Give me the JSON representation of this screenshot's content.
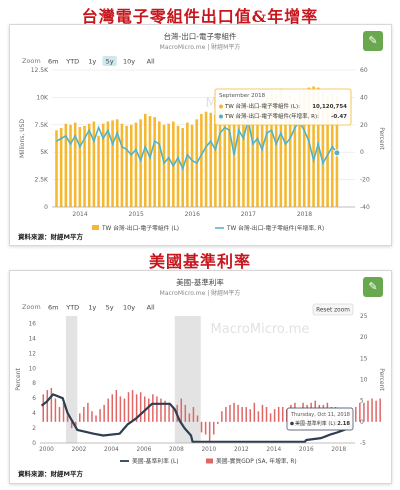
{
  "headline1": "台灣電子零組件出口值&年增率",
  "headline2": "美國基準利率",
  "chart_data": [
    {
      "type": "bar",
      "title": "台灣-出口-電子零組件",
      "subtitle": "MacroMicro.me | 財經M平方",
      "watermark": "MacroMicro.me",
      "source": "資料來源：財經M平方",
      "zoom_label": "Zoom",
      "zoom_buttons": [
        "6m",
        "YTD",
        "1y",
        "5y",
        "10y",
        "All"
      ],
      "active_zoom": "5y",
      "ylabel_left": "Millions, USD",
      "ylabel_right": "Percent",
      "left_ticks": [
        "0",
        "2.5K",
        "5K",
        "7.5K",
        "10K",
        "12.5K"
      ],
      "right_ticks": [
        "-40",
        "-20",
        "0",
        "20",
        "40",
        "60"
      ],
      "x_ticks": [
        "2014",
        "2015",
        "2016",
        "2017",
        "2018"
      ],
      "ylim_left": [
        0,
        12500
      ],
      "ylim_right": [
        -40,
        60
      ],
      "x_range": [
        2013.5,
        2018.9
      ],
      "start": 2013.58,
      "step": 0.0833,
      "series": [
        {
          "name": "TW 台灣-出口-電子零組件 (L)",
          "type": "bar",
          "color": "#f5b82e",
          "values": [
            7000,
            7200,
            7600,
            7500,
            7700,
            7300,
            7400,
            7600,
            7800,
            6500,
            7600,
            7800,
            7900,
            8000,
            7600,
            7400,
            7500,
            7700,
            8000,
            8500,
            8300,
            8200,
            7800,
            7500,
            7600,
            7800,
            7400,
            7200,
            7700,
            7500,
            8000,
            8500,
            8700,
            8600,
            8400,
            8800,
            9300,
            9800,
            8100,
            9000,
            9300,
            9400,
            9600,
            9500,
            9800,
            10200,
            10500,
            10300,
            10800,
            9600,
            10200,
            10000,
            10400,
            10600,
            10900,
            11000,
            10900,
            10500,
            10100,
            10300,
            10120
          ]
        },
        {
          "name": "TW 台灣-出口-電子零組件(年增率, R)",
          "type": "line",
          "color": "#4fb3c8",
          "values": [
            8,
            10,
            12,
            6,
            12,
            4,
            10,
            16,
            8,
            18,
            10,
            16,
            6,
            14,
            4,
            2,
            -2,
            2,
            -6,
            4,
            -4,
            8,
            6,
            -8,
            -4,
            -10,
            -4,
            -12,
            -2,
            -6,
            -8,
            -2,
            4,
            8,
            2,
            14,
            18,
            16,
            -2,
            16,
            10,
            24,
            6,
            10,
            2,
            14,
            16,
            6,
            14,
            6,
            10,
            18,
            22,
            16,
            8,
            -6,
            6,
            -8,
            -2,
            4,
            -0.47
          ]
        }
      ],
      "tooltip": {
        "date": "September 2018",
        "line1_label": "TW 台灣-出口-電子零組件 (L):",
        "line1_value": "10,120,754",
        "line2_label": "TW 台灣-出口-電子零組件(年增率, R):",
        "line2_value": "-0.47"
      }
    },
    {
      "type": "line",
      "title": "美國-基準利率",
      "subtitle": "MacroMicro.me | 財經M平方",
      "watermark": "MacroMicro.me",
      "source": "資料來源：財經M平方",
      "zoom_label": "Zoom",
      "zoom_buttons": [
        "6m",
        "YTD",
        "1y",
        "5y",
        "10y",
        "All"
      ],
      "reset_label": "Reset zoom",
      "ylabel_left": "Percent",
      "ylabel_right": "Percent",
      "left_ticks": [
        "0",
        "2",
        "4",
        "6",
        "8",
        "10",
        "12",
        "14",
        "16"
      ],
      "right_ticks": [
        "-5",
        "0",
        "5",
        "10",
        "15",
        "20",
        "25"
      ],
      "x_ticks": [
        "2000",
        "2002",
        "2004",
        "2006",
        "2008",
        "2010",
        "2012",
        "2014",
        "2016",
        "2018"
      ],
      "ylim_left": [
        0,
        17
      ],
      "ylim_right": [
        -5,
        25
      ],
      "x_range": [
        1999.6,
        2019.0
      ],
      "recessions": [
        [
          2001.2,
          2001.9
        ],
        [
          2007.9,
          2009.5
        ]
      ],
      "series": [
        {
          "name": "美國-基準利率 (L)",
          "type": "line",
          "color": "#2c3e50",
          "points": [
            [
              1999.7,
              5.0
            ],
            [
              2000.0,
              5.5
            ],
            [
              2000.4,
              6.5
            ],
            [
              2001.0,
              6.0
            ],
            [
              2001.3,
              4.0
            ],
            [
              2001.7,
              2.5
            ],
            [
              2001.9,
              1.75
            ],
            [
              2002.9,
              1.25
            ],
            [
              2003.5,
              1.0
            ],
            [
              2004.5,
              1.25
            ],
            [
              2004.8,
              2.0
            ],
            [
              2005.0,
              2.5
            ],
            [
              2005.5,
              3.25
            ],
            [
              2006.0,
              4.25
            ],
            [
              2006.5,
              5.25
            ],
            [
              2007.6,
              5.25
            ],
            [
              2007.9,
              4.5
            ],
            [
              2008.2,
              3.0
            ],
            [
              2008.5,
              2.0
            ],
            [
              2008.9,
              1.0
            ],
            [
              2009.0,
              0.15
            ],
            [
              2015.9,
              0.15
            ],
            [
              2016.0,
              0.4
            ],
            [
              2016.9,
              0.65
            ],
            [
              2017.2,
              0.9
            ],
            [
              2017.5,
              1.15
            ],
            [
              2017.9,
              1.4
            ],
            [
              2018.2,
              1.65
            ],
            [
              2018.5,
              1.9
            ],
            [
              2018.72,
              2.18
            ]
          ]
        },
        {
          "name": "美國-實質GDP (SA, 年增率, R)",
          "type": "bar",
          "color": "#e06666",
          "start": 1999.8,
          "step": 0.25,
          "values": [
            6.5,
            7.5,
            8.0,
            5.5,
            3.5,
            4.5,
            1.5,
            -1.5,
            -1.0,
            2.0,
            3.5,
            4.5,
            2.5,
            1.5,
            3.0,
            4.0,
            5.5,
            6.5,
            7.5,
            6.0,
            5.5,
            7.0,
            7.5,
            6.5,
            7.0,
            6.0,
            5.5,
            6.5,
            6.0,
            5.5,
            5.0,
            4.5,
            3.5,
            4.0,
            5.5,
            4.0,
            2.0,
            3.5,
            1.5,
            -2.5,
            -3.0,
            -4.5,
            -3.0,
            -0.5,
            2.5,
            3.5,
            4.0,
            4.5,
            4.0,
            3.5,
            3.5,
            3.0,
            4.5,
            2.5,
            4.0,
            3.5,
            2.0,
            3.0,
            3.5,
            3.5,
            3.0,
            4.0,
            4.5,
            2.5,
            4.5,
            4.0,
            4.5,
            5.0,
            4.0,
            4.0,
            4.5,
            3.5,
            3.5,
            3.0,
            2.5,
            2.5,
            3.0,
            3.5,
            4.5,
            4.5,
            5.0,
            5.5,
            5.0,
            5.5
          ]
        }
      ],
      "tooltip": {
        "date": "Thursday, Oct 11, 2018",
        "line1_label": "美國-基準利率 (L):",
        "line1_value": "2.18"
      }
    }
  ]
}
